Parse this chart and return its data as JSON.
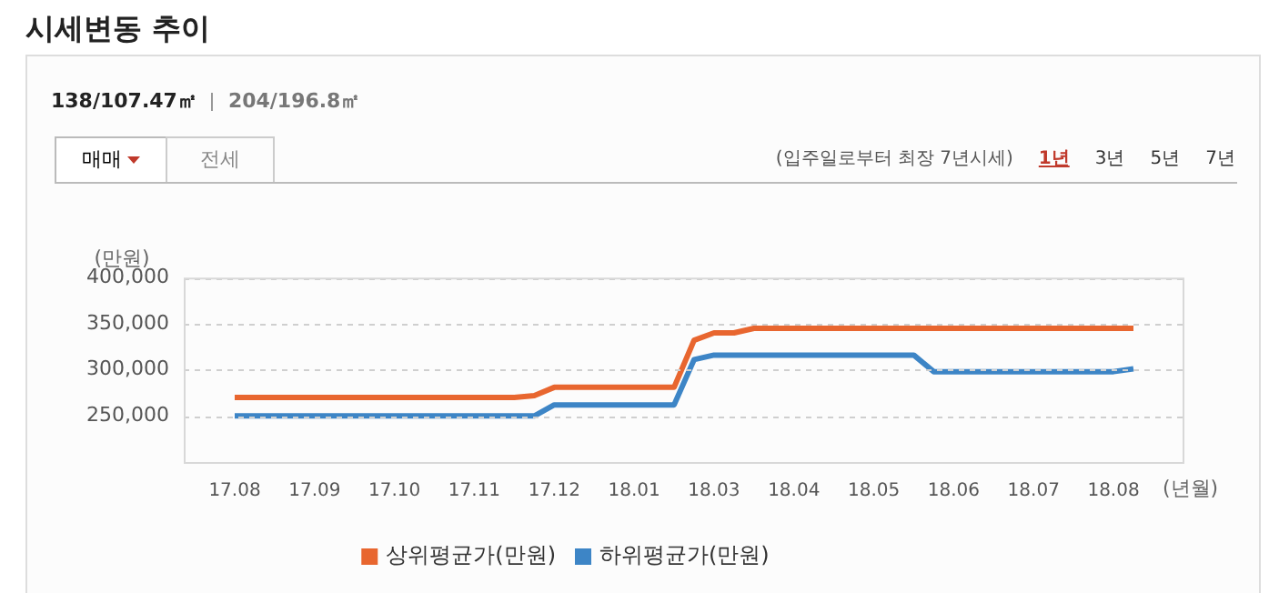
{
  "chart_data": {
    "type": "line",
    "title": "시세변동 추이",
    "ylabel": "(만원)",
    "xlabel": "(년월)",
    "annotations": [
      "138/107.47㎡",
      "204/196.8㎡",
      "매매",
      "전세",
      "(입주일로부터 최장 7년시세)",
      "1년",
      "3년",
      "5년",
      "7년"
    ],
    "categories": [
      "17.08",
      null,
      null,
      null,
      "17.09",
      null,
      null,
      null,
      "17.10",
      null,
      null,
      null,
      "17.11",
      null,
      null,
      null,
      "17.12",
      null,
      null,
      null,
      "18.01",
      null,
      null,
      null,
      "18.03",
      null,
      null,
      null,
      "18.04",
      null,
      null,
      null,
      "18.05",
      null,
      null,
      null,
      "18.06",
      null,
      null,
      null,
      "18.07",
      null,
      null,
      null,
      "18.08",
      null
    ],
    "series": [
      {
        "name": "상위평균가(만원)",
        "color": "#e8662f",
        "values": [
          270000,
          270000,
          270000,
          270000,
          270000,
          270000,
          270000,
          270000,
          270000,
          270000,
          270000,
          270000,
          270000,
          270000,
          270000,
          272000,
          281000,
          281000,
          281000,
          281000,
          281000,
          281000,
          281000,
          332000,
          340000,
          340000,
          345000,
          345000,
          345000,
          345000,
          345000,
          345000,
          345000,
          345000,
          345000,
          345000,
          345000,
          345000,
          345000,
          345000,
          345000,
          345000,
          345000,
          345000,
          345000,
          345000
        ]
      },
      {
        "name": "하위평균가(만원)",
        "color": "#3d85c6",
        "values": [
          250000,
          250000,
          250000,
          250000,
          250000,
          250000,
          250000,
          250000,
          250000,
          250000,
          250000,
          250000,
          250000,
          250000,
          250000,
          250000,
          262000,
          262000,
          262000,
          262000,
          262000,
          262000,
          262000,
          311000,
          316000,
          316000,
          316000,
          316000,
          316000,
          316000,
          316000,
          316000,
          316000,
          316000,
          316000,
          298000,
          298000,
          298000,
          298000,
          298000,
          298000,
          298000,
          298000,
          298000,
          298000,
          301000
        ]
      }
    ],
    "ylim": [
      200000,
      400000
    ],
    "yticks": [
      {
        "value": 250000,
        "label": "250,000"
      },
      {
        "value": 300000,
        "label": "300,000"
      },
      {
        "value": 350000,
        "label": "350,000"
      },
      {
        "value": 400000,
        "label": "400,000"
      }
    ],
    "grid": "y",
    "legend": "bottom",
    "marker": "none",
    "line_style": "solid"
  }
}
